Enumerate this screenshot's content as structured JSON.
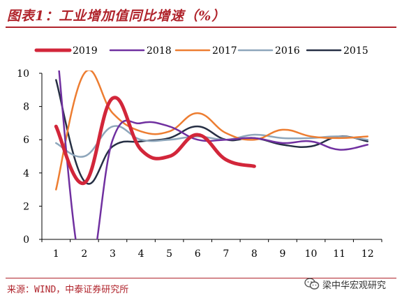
{
  "header": {
    "title": "图表1：工业增加值同比增速（%）"
  },
  "footer": {
    "source": "来源：WIND，中泰证券研究所",
    "watermark": "梁中华宏观研究"
  },
  "colors": {
    "title": "#b0242c",
    "axis": "#000000"
  },
  "chart_data": {
    "type": "line",
    "title": "",
    "xlabel": "",
    "ylabel": "",
    "categories": [
      "1",
      "2",
      "3",
      "4",
      "5",
      "6",
      "7",
      "8",
      "9",
      "10",
      "11",
      "12"
    ],
    "ylim": [
      0,
      10
    ],
    "yticks": [
      0,
      2,
      4,
      6,
      8,
      10
    ],
    "grid": false,
    "legend_position": "top",
    "series": [
      {
        "name": "2019",
        "color": "#d2263a",
        "width": 5,
        "values": [
          6.8,
          3.4,
          8.5,
          5.4,
          5.0,
          6.3,
          4.8,
          4.4,
          null,
          null,
          null,
          null
        ]
      },
      {
        "name": "2018",
        "color": "#7030a0",
        "width": 2.5,
        "values": [
          12.0,
          -2.5,
          6.0,
          7.0,
          6.8,
          6.0,
          6.0,
          6.1,
          5.8,
          5.9,
          5.4,
          5.7
        ]
      },
      {
        "name": "2017",
        "color": "#ed7d31",
        "width": 2.5,
        "values": [
          3.0,
          10.0,
          7.6,
          6.5,
          6.5,
          7.6,
          6.4,
          6.0,
          6.6,
          6.2,
          6.1,
          6.2
        ]
      },
      {
        "name": "2016",
        "color": "#8ea6bb",
        "width": 2.5,
        "values": [
          5.8,
          5.0,
          6.8,
          6.0,
          6.0,
          6.2,
          6.0,
          6.3,
          6.1,
          6.1,
          6.2,
          6.0
        ]
      },
      {
        "name": "2015",
        "color": "#262f44",
        "width": 2.5,
        "values": [
          9.6,
          3.5,
          5.6,
          5.9,
          6.1,
          6.8,
          6.0,
          6.1,
          5.7,
          5.6,
          6.2,
          5.9
        ]
      }
    ]
  }
}
